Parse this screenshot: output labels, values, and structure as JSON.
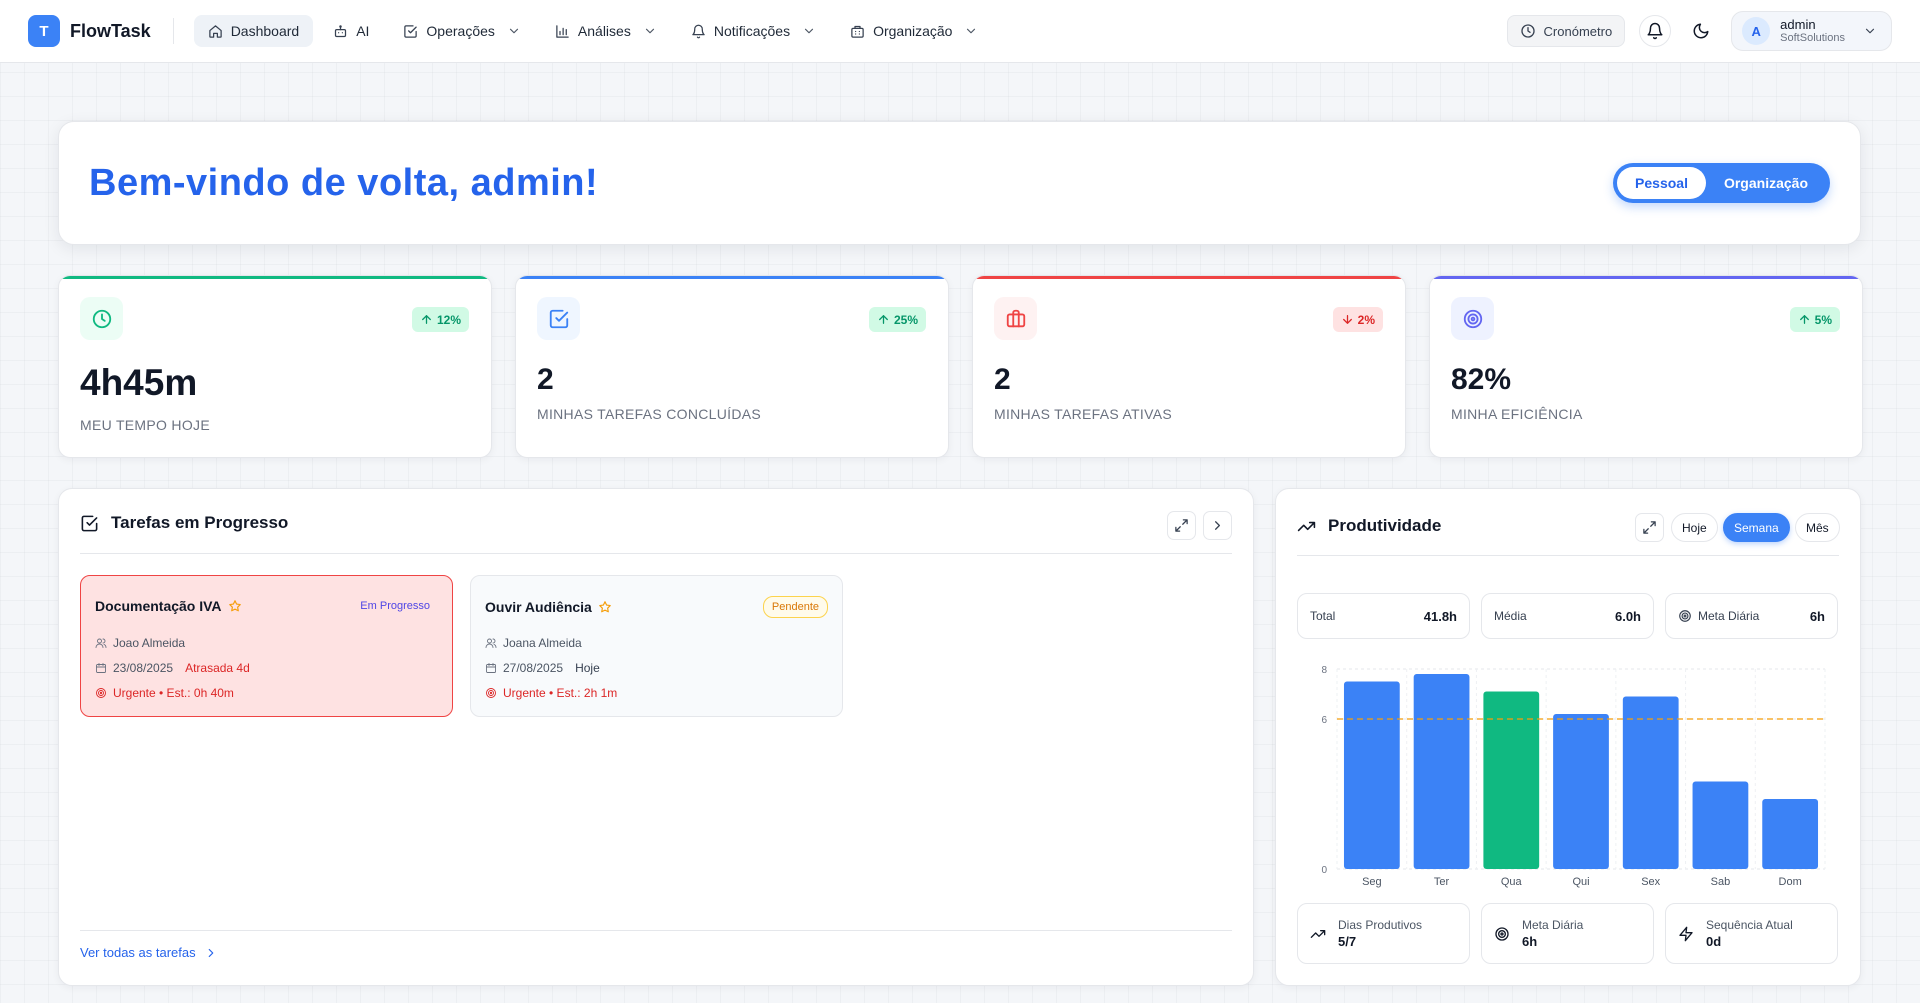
{
  "nav": {
    "brand_letter": "T",
    "brand_name": "FlowTask",
    "items": [
      {
        "label": "Dashboard",
        "icon": "home-icon",
        "active": true
      },
      {
        "label": "AI",
        "icon": "bot-icon"
      },
      {
        "label": "Operações",
        "icon": "check-square-icon",
        "dropdown": true
      },
      {
        "label": "Análises",
        "icon": "bar-chart-icon",
        "dropdown": true
      },
      {
        "label": "Notificações",
        "icon": "bell-icon",
        "dropdown": true
      },
      {
        "label": "Organização",
        "icon": "building-icon",
        "dropdown": true
      }
    ],
    "chrono_label": "Cronómetro",
    "user": {
      "initial": "A",
      "name": "admin",
      "org": "SoftSolutions"
    }
  },
  "welcome": {
    "title": "Bem-vindo de volta, admin!",
    "toggle": [
      "Pessoal",
      "Organização"
    ],
    "toggle_selected": "Pessoal"
  },
  "stats": [
    {
      "value": "4h45m",
      "label": "MEU TEMPO HOJE",
      "change": "12%",
      "direction": "up",
      "icon": "clock-icon",
      "color": "#10b981"
    },
    {
      "value": "2",
      "label": "MINHAS TAREFAS CONCLUÍDAS",
      "change": "25%",
      "direction": "up",
      "icon": "check-square-icon",
      "color": "#3b82f6"
    },
    {
      "value": "2",
      "label": "MINHAS TAREFAS ATIVAS",
      "change": "2%",
      "direction": "down",
      "icon": "briefcase-icon",
      "color": "#ef4444"
    },
    {
      "value": "82%",
      "label": "MINHA EFICIÊNCIA",
      "change": "5%",
      "direction": "up",
      "icon": "target-icon",
      "color": "#6366f1"
    }
  ],
  "tasks": {
    "title": "Tarefas em Progresso",
    "see_all": "Ver todas as tarefas",
    "items": [
      {
        "title": "Documentação IVA",
        "status": "Em Progresso",
        "assignee": "Joao Almeida",
        "date": "23/08/2025",
        "due_note": "Atrasada 4d",
        "priority_line": "Urgente • Est.: 0h 40m"
      },
      {
        "title": "Ouvir Audiência",
        "status": "Pendente",
        "assignee": "Joana Almeida",
        "date": "27/08/2025",
        "due_note": "Hoje",
        "priority_line": "Urgente • Est.: 2h 1m"
      }
    ]
  },
  "productivity": {
    "title": "Produtividade",
    "periods": [
      "Hoje",
      "Semana",
      "Mês"
    ],
    "period_selected": "Semana",
    "summary": [
      {
        "label": "Total",
        "value": "41.8h"
      },
      {
        "label": "Média",
        "value": "6.0h"
      },
      {
        "label": "Meta Diária",
        "value": "6h",
        "icon": "target-icon"
      }
    ],
    "footer": [
      {
        "label": "Dias Produtivos",
        "value": "5/7",
        "icon": "trending-up-icon"
      },
      {
        "label": "Meta Diária",
        "value": "6h",
        "icon": "target-icon"
      },
      {
        "label": "Sequência Atual",
        "value": "0d",
        "icon": "zap-icon"
      }
    ]
  },
  "chart_data": {
    "type": "bar",
    "categories": [
      "Seg",
      "Ter",
      "Qua",
      "Qui",
      "Sex",
      "Sab",
      "Dom"
    ],
    "values": [
      7.5,
      7.8,
      7.1,
      6.2,
      6.9,
      3.5,
      2.8
    ],
    "highlight_index": 2,
    "bar_color": "#3b82f6",
    "highlight_color": "#10b981",
    "goal_line": 6,
    "goal_color": "#f59e0b",
    "yticks": [
      0,
      6,
      8
    ],
    "ylim": [
      0,
      8
    ],
    "grid": true
  }
}
